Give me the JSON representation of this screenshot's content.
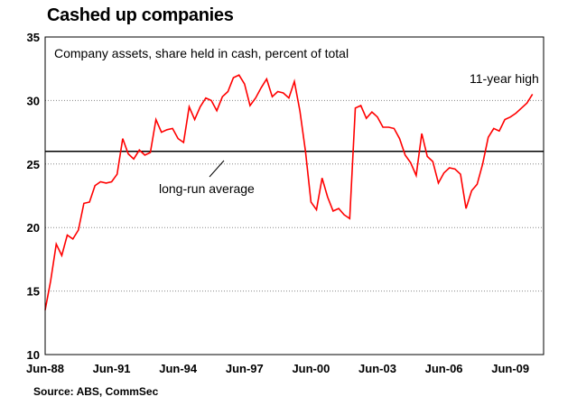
{
  "title": "Cashed up companies",
  "source": "Source: ABS, CommSec",
  "chart_data": {
    "type": "line",
    "title": "Cashed up companies",
    "subtitle": "Company assets, share held in cash, percent of total",
    "ylim": [
      10,
      35
    ],
    "yticks": [
      10,
      15,
      20,
      25,
      30,
      35
    ],
    "xlim": [
      1988.5,
      2011.0
    ],
    "xticks": [
      {
        "label": "Jun-88",
        "value": 1988.5
      },
      {
        "label": "Jun-91",
        "value": 1991.5
      },
      {
        "label": "Jun-94",
        "value": 1994.5
      },
      {
        "label": "Jun-97",
        "value": 1997.5
      },
      {
        "label": "Jun-00",
        "value": 2000.5
      },
      {
        "label": "Jun-03",
        "value": 2003.5
      },
      {
        "label": "Jun-06",
        "value": 2006.5
      },
      {
        "label": "Jun-09",
        "value": 2009.5
      }
    ],
    "grid": true,
    "reference_line": {
      "label": "long-run average",
      "value": 26.0
    },
    "annotations": [
      {
        "text": "11-year high"
      },
      {
        "text": "long-run average"
      }
    ],
    "series_color": "#ff0000",
    "series": [
      {
        "x": [
          1988.5,
          1988.75,
          1989.0,
          1989.25,
          1989.5,
          1989.75,
          1990.0,
          1990.25,
          1990.5,
          1990.75,
          1991.0,
          1991.25,
          1991.5,
          1991.75,
          1992.0,
          1992.25,
          1992.5,
          1992.75,
          1993.0,
          1993.25,
          1993.5,
          1993.75,
          1994.0,
          1994.25,
          1994.5,
          1994.75,
          1995.0,
          1995.25,
          1995.5,
          1995.75,
          1996.0,
          1996.25,
          1996.5,
          1996.75,
          1997.0,
          1997.25,
          1997.5,
          1997.75,
          1998.0,
          1998.25,
          1998.5,
          1998.75,
          1999.0,
          1999.25,
          1999.5,
          1999.75,
          2000.0,
          2000.25,
          2000.5,
          2000.75,
          2001.0,
          2001.25,
          2001.5,
          2001.75,
          2002.0,
          2002.25,
          2002.5,
          2002.75,
          2003.0,
          2003.25,
          2003.5,
          2003.75,
          2004.0,
          2004.25,
          2004.5,
          2004.75,
          2005.0,
          2005.25,
          2005.5,
          2005.75,
          2006.0,
          2006.25,
          2006.5,
          2006.75,
          2007.0,
          2007.25,
          2007.5,
          2007.75,
          2008.0,
          2008.25,
          2008.5,
          2008.75,
          2009.0,
          2009.25,
          2009.5,
          2009.75,
          2010.0,
          2010.25,
          2010.5
        ],
        "values": [
          13.5,
          15.8,
          18.7,
          17.8,
          19.4,
          19.1,
          19.8,
          21.9,
          22.0,
          23.3,
          23.6,
          23.5,
          23.6,
          24.2,
          27.0,
          25.8,
          25.4,
          26.1,
          25.7,
          25.9,
          28.5,
          27.5,
          27.7,
          27.8,
          27.0,
          26.7,
          29.5,
          28.5,
          29.5,
          30.2,
          30.0,
          29.2,
          30.3,
          30.7,
          31.8,
          32.0,
          31.3,
          29.6,
          30.2,
          31.0,
          31.7,
          30.3,
          30.7,
          30.6,
          30.2,
          31.5,
          29.2,
          26.0,
          22.0,
          21.4,
          23.9,
          22.4,
          21.3,
          21.5,
          21.0,
          20.7,
          29.4,
          29.6,
          28.6,
          29.1,
          28.7,
          27.9,
          27.9,
          27.8,
          27.0,
          25.7,
          25.1,
          24.1,
          27.4,
          25.6,
          25.2,
          23.5,
          24.3,
          24.7,
          24.6,
          24.2,
          21.5,
          22.9,
          23.4,
          25.0,
          27.1,
          27.8,
          27.6,
          28.5,
          28.7,
          29.0,
          29.4,
          29.8,
          30.5
        ]
      }
    ]
  }
}
